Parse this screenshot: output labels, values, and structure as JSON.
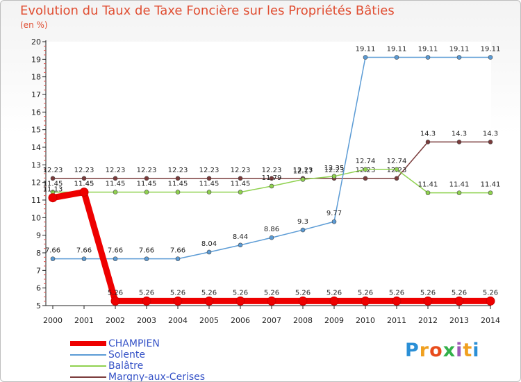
{
  "title": "Evolution du Taux de Taxe Foncière sur les Propriétés Bâties",
  "unit": "(en %)",
  "logo": {
    "text": "Proxiti",
    "letter_colors": [
      "#2a8fd6",
      "#f0a020",
      "#e84c1c",
      "#33b04a",
      "#9b59b6",
      "#f0a020",
      "#2a8fd6"
    ]
  },
  "chart_data": {
    "type": "line",
    "title": "Evolution du Taux de Taxe Foncière sur les Propriétés Bâties",
    "ylabel": "(en %)",
    "xlabel": "",
    "ylim": [
      5,
      20
    ],
    "yticks": [
      5,
      6,
      7,
      8,
      9,
      10,
      11,
      12,
      13,
      14,
      15,
      16,
      17,
      18,
      19,
      20
    ],
    "x": [
      2000,
      2001,
      2002,
      2003,
      2004,
      2005,
      2006,
      2007,
      2008,
      2009,
      2010,
      2011,
      2012,
      2013,
      2014
    ],
    "legend_position": "bottom-left",
    "series": [
      {
        "name": "CHAMPIEN",
        "color": "#ee0000",
        "values": [
          11.13,
          11.45,
          5.26,
          5.26,
          5.26,
          5.26,
          5.26,
          5.26,
          5.26,
          5.26,
          5.26,
          5.26,
          5.26,
          5.26,
          5.26
        ],
        "labels": [
          "11.13",
          "11.45",
          "5.26",
          "5.26",
          "5.26",
          "5.26",
          "5.26",
          "5.26",
          "5.26",
          "5.26",
          "5.26",
          "5.26",
          "5.26",
          "5.26",
          "5.26"
        ]
      },
      {
        "name": "Solente",
        "color": "#5b9bd5",
        "values": [
          7.66,
          7.66,
          7.66,
          7.66,
          7.66,
          8.04,
          8.44,
          8.86,
          9.3,
          9.77,
          19.11,
          19.11,
          19.11,
          19.11,
          19.11
        ],
        "labels": [
          "7.66",
          "7.66",
          "7.66",
          "7.66",
          "7.66",
          "8.04",
          "8.44",
          "8.86",
          "9.3",
          "9.77",
          "19.11",
          "19.11",
          "19.11",
          "19.11",
          "19.11"
        ]
      },
      {
        "name": "Balâtre",
        "color": "#8fd14f",
        "values": [
          11.45,
          11.45,
          11.45,
          11.45,
          11.45,
          11.45,
          11.45,
          11.79,
          12.17,
          12.35,
          12.74,
          12.74,
          11.41,
          11.41,
          11.41
        ],
        "labels": [
          "11.45",
          "11.45",
          "11.45",
          "11.45",
          "11.45",
          "11.45",
          "11.45",
          "11.79",
          "12.17",
          "12.35",
          "12.74",
          "12.74",
          "11.41",
          "11.41",
          "11.41"
        ]
      },
      {
        "name": "Margny-aux-Cerises",
        "color": "#7a3b3b",
        "values": [
          12.23,
          12.23,
          12.23,
          12.23,
          12.23,
          12.23,
          12.23,
          12.23,
          12.23,
          12.23,
          12.23,
          12.23,
          14.3,
          14.3,
          14.3
        ],
        "labels": [
          "12.23",
          "12.23",
          "12.23",
          "12.23",
          "12.23",
          "12.23",
          "12.23",
          "12.23",
          "12.23",
          "12.23",
          "12.23",
          "12.23",
          "14.3",
          "14.3",
          "14.3"
        ]
      }
    ]
  }
}
